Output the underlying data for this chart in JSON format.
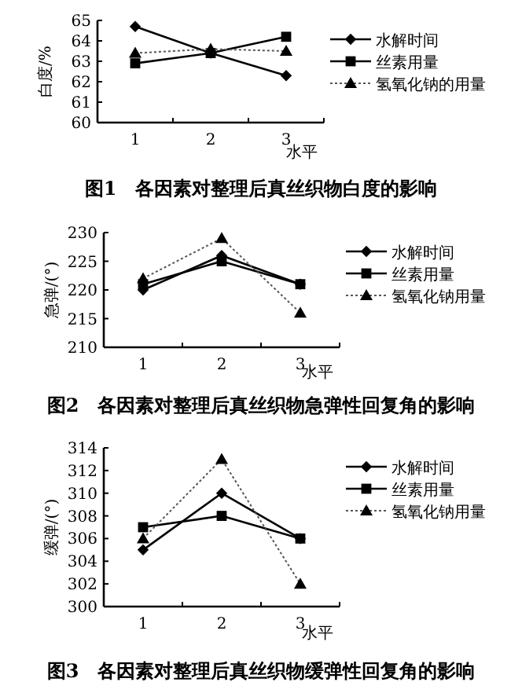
{
  "chart_data": [
    {
      "type": "line",
      "title": "图1　各因素对整理后真丝织物白度的影响",
      "xlabel": "水平",
      "ylabel": "白度/%",
      "categories": [
        "1",
        "2",
        "3"
      ],
      "ylim": [
        60,
        65
      ],
      "yticks": [
        60,
        61,
        62,
        63,
        64,
        65
      ],
      "legend": "right",
      "series": [
        {
          "name": "水解时间",
          "color": "#000000",
          "values": [
            64.7,
            63.4,
            62.3
          ],
          "marker": "diamond",
          "line_style": "solid"
        },
        {
          "name": "丝素用量",
          "color": "#000000",
          "values": [
            62.9,
            63.4,
            64.2
          ],
          "marker": "square",
          "line_style": "solid"
        },
        {
          "name": "氢氧化钠的用量",
          "color": "#000000",
          "values": [
            63.4,
            63.6,
            63.5
          ],
          "marker": "triangle",
          "line_style": "dotted"
        }
      ]
    },
    {
      "type": "line",
      "title": "图2　各因素对整理后真丝织物急弹性回复角的影响",
      "xlabel": "水平",
      "ylabel": "急弹/(°)",
      "categories": [
        "1",
        "2",
        "3"
      ],
      "ylim": [
        210,
        230
      ],
      "yticks": [
        210,
        215,
        220,
        225,
        230
      ],
      "legend": "right",
      "series": [
        {
          "name": "水解时间",
          "color": "#000000",
          "values": [
            220,
            226,
            221
          ],
          "marker": "diamond",
          "line_style": "solid"
        },
        {
          "name": "丝素用量",
          "color": "#000000",
          "values": [
            221,
            225,
            221
          ],
          "marker": "square",
          "line_style": "solid"
        },
        {
          "name": "氢氧化钠用量",
          "color": "#000000",
          "values": [
            222,
            229,
            216
          ],
          "marker": "triangle",
          "line_style": "dotted"
        }
      ]
    },
    {
      "type": "line",
      "title": "图3　各因素对整理后真丝织物缓弹性回复角的影响",
      "xlabel": "水平",
      "ylabel": "缓弹/(°)",
      "categories": [
        "1",
        "2",
        "3"
      ],
      "ylim": [
        300,
        314
      ],
      "yticks": [
        300,
        302,
        304,
        306,
        308,
        310,
        312,
        314
      ],
      "legend": "right",
      "series": [
        {
          "name": "水解时间",
          "color": "#000000",
          "values": [
            305,
            310,
            306
          ],
          "marker": "diamond",
          "line_style": "solid"
        },
        {
          "name": "丝素用量",
          "color": "#000000",
          "values": [
            307,
            308,
            306
          ],
          "marker": "square",
          "line_style": "solid"
        },
        {
          "name": "氢氧化钠用量",
          "color": "#000000",
          "values": [
            306,
            313,
            302
          ],
          "marker": "triangle",
          "line_style": "dotted"
        }
      ]
    }
  ]
}
